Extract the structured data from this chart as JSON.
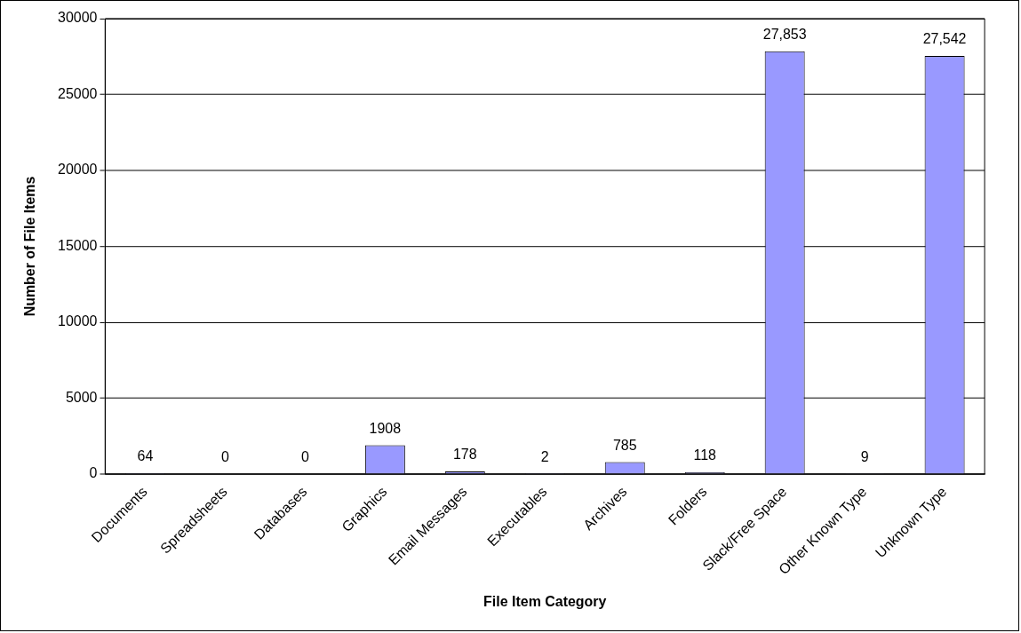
{
  "chart_data": {
    "type": "bar",
    "xlabel": "File Item Category",
    "ylabel": "Number of File Items",
    "categories": [
      "Documents",
      "Spreadsheets",
      "Databases",
      "Graphics",
      "Email Messages",
      "Executables",
      "Archives",
      "Folders",
      "Slack/Free Space",
      "Other Known Type",
      "Unknown Type"
    ],
    "values": [
      64,
      0,
      0,
      1908,
      178,
      2,
      785,
      118,
      27853,
      9,
      27542
    ],
    "value_labels": [
      "64",
      "0",
      "0",
      "1908",
      "178",
      "2",
      "785",
      "118",
      "27,853",
      "9",
      "27,542"
    ],
    "color": "#9999ff",
    "ylim": [
      0,
      30000
    ],
    "yticks": [
      0,
      5000,
      10000,
      15000,
      20000,
      25000,
      30000
    ],
    "grid": "y",
    "legend": false
  }
}
